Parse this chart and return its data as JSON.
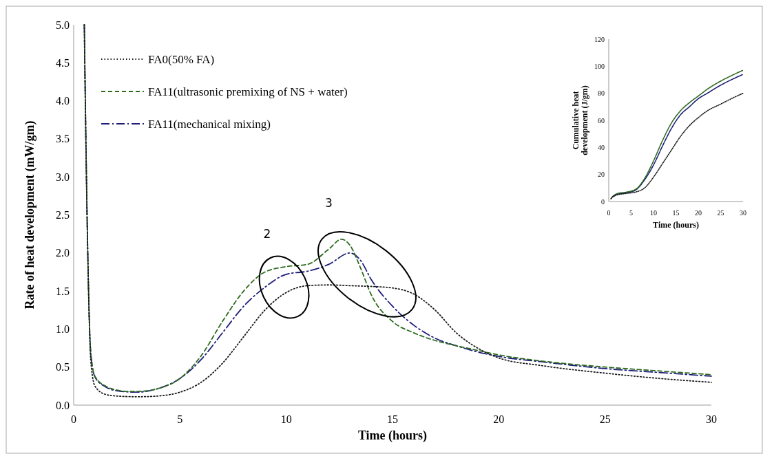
{
  "chart_data": [
    {
      "type": "line",
      "xlabel": "Time (hours)",
      "ylabel": "Rate of heat development (mW/gm)",
      "xlim": [
        0,
        30
      ],
      "xticks": [
        0,
        5,
        10,
        15,
        20,
        25,
        30
      ],
      "ylim": [
        0,
        5
      ],
      "yticks": [
        {
          "value": 0,
          "label": "0.0"
        },
        {
          "value": 0.5,
          "label": "0.5"
        },
        {
          "value": 1,
          "label": "1.0"
        },
        {
          "value": 1.5,
          "label": "1.5"
        },
        {
          "value": 2,
          "label": "2.0"
        },
        {
          "value": 2.5,
          "label": "2.5"
        },
        {
          "value": 3,
          "label": "3.0"
        },
        {
          "value": 3.5,
          "label": "3.5"
        },
        {
          "value": 4,
          "label": "4.0"
        },
        {
          "value": 4.5,
          "label": "4.5"
        },
        {
          "value": 5,
          "label": "5.0"
        }
      ],
      "grid": false,
      "legend": "top left",
      "annotations": [
        "2",
        "3"
      ],
      "series": [
        {
          "name": "FA0(50% FA)",
          "color": "#1a1a1a",
          "line_style": "dotted",
          "x": [
            0.5,
            0.6,
            0.7,
            0.8,
            1,
            1.5,
            2,
            3,
            4,
            5,
            6,
            7,
            8,
            9,
            10,
            11,
            12,
            13,
            14,
            15,
            16,
            17,
            18,
            19,
            20,
            22,
            25,
            28,
            30
          ],
          "values": [
            5,
            3,
            1.5,
            0.6,
            0.25,
            0.14,
            0.12,
            0.11,
            0.12,
            0.17,
            0.3,
            0.55,
            0.9,
            1.25,
            1.48,
            1.57,
            1.58,
            1.57,
            1.56,
            1.54,
            1.46,
            1.25,
            0.95,
            0.75,
            0.62,
            0.52,
            0.42,
            0.34,
            0.3
          ]
        },
        {
          "name": "FA11(ultrasonic premixing of NS + water)",
          "color": "#2d6a1e",
          "line_style": "dashed",
          "x": [
            0.5,
            0.6,
            0.7,
            0.8,
            1,
            1.5,
            2,
            2.5,
            3,
            4,
            5,
            6,
            7,
            8,
            9,
            10,
            11,
            12,
            12.6,
            13,
            13.5,
            14,
            15,
            16,
            17,
            18,
            19,
            20,
            22,
            25,
            28,
            30
          ],
          "values": [
            5,
            3,
            1.5,
            0.7,
            0.38,
            0.25,
            0.2,
            0.18,
            0.18,
            0.22,
            0.35,
            0.65,
            1.1,
            1.5,
            1.75,
            1.82,
            1.85,
            2.05,
            2.18,
            2.1,
            1.8,
            1.45,
            1.1,
            0.95,
            0.85,
            0.78,
            0.72,
            0.66,
            0.58,
            0.5,
            0.44,
            0.4
          ]
        },
        {
          "name": "FA11(mechanical mixing)",
          "color": "#1c1c78",
          "line_style": "dashdot",
          "x": [
            0.5,
            0.6,
            0.7,
            0.8,
            1,
            1.5,
            2,
            3,
            4,
            5,
            6,
            7,
            8,
            9,
            10,
            11,
            12,
            13,
            13.5,
            14,
            15,
            16,
            17,
            18,
            19,
            20,
            22,
            25,
            28,
            30
          ],
          "values": [
            5,
            3,
            1.5,
            0.7,
            0.37,
            0.24,
            0.19,
            0.17,
            0.22,
            0.35,
            0.6,
            0.95,
            1.3,
            1.55,
            1.72,
            1.76,
            1.85,
            2.0,
            1.9,
            1.65,
            1.3,
            1.05,
            0.88,
            0.78,
            0.7,
            0.64,
            0.57,
            0.48,
            0.42,
            0.38
          ]
        }
      ]
    },
    {
      "type": "line",
      "xlabel": "Time (hours)",
      "ylabel": "Cumulative heat development (J/gm)",
      "xlim": [
        0,
        30
      ],
      "xticks": [
        0,
        5,
        10,
        15,
        20,
        25,
        30
      ],
      "ylim": [
        0,
        120
      ],
      "yticks": [
        0,
        20,
        40,
        60,
        80,
        100,
        120
      ],
      "grid": false,
      "series": [
        {
          "color": "#1a1a1a",
          "line_style": "dotted",
          "x": [
            0.5,
            1,
            2,
            4,
            6,
            8,
            10,
            12,
            14,
            16,
            18,
            20,
            22,
            25,
            28,
            30
          ],
          "values": [
            2,
            4,
            5,
            6,
            7,
            10,
            18,
            28,
            38,
            48,
            56,
            62,
            67,
            72,
            77,
            80
          ]
        },
        {
          "color": "#2d6a1e",
          "line_style": "dashed",
          "x": [
            0.5,
            1,
            2,
            4,
            6,
            8,
            10,
            12,
            14,
            16,
            18,
            20,
            22,
            25,
            28,
            30
          ],
          "values": [
            2,
            4,
            6,
            7,
            9,
            17,
            30,
            45,
            58,
            67,
            73,
            78,
            83,
            89,
            94,
            97
          ]
        },
        {
          "color": "#1c1c78",
          "line_style": "dashdot",
          "x": [
            1,
            2,
            4,
            6,
            8,
            10,
            12,
            14,
            16,
            18,
            20,
            22,
            25,
            28,
            30
          ],
          "values": [
            3.5,
            5.5,
            6.5,
            8.5,
            16,
            27,
            41,
            54,
            64,
            70,
            76,
            80,
            86,
            91,
            94
          ]
        }
      ]
    }
  ]
}
